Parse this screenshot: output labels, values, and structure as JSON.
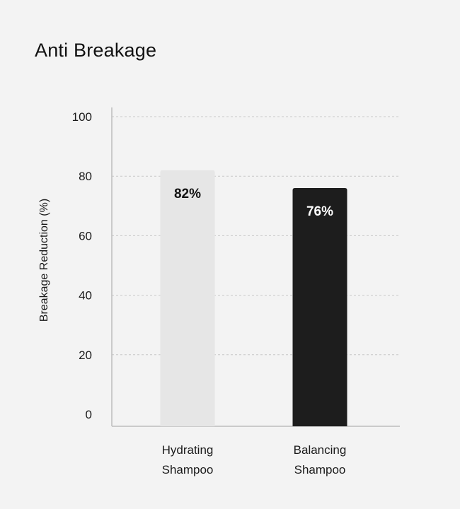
{
  "chart_data": {
    "type": "bar",
    "title": "Anti Breakage",
    "ylabel": "Breakage Reduction (%)",
    "xlabel": "",
    "ylim": [
      0,
      100
    ],
    "yticks": [
      0,
      20,
      40,
      60,
      80,
      100
    ],
    "grid": true,
    "categories": [
      [
        "Hydrating",
        "Shampoo"
      ],
      [
        "Balancing",
        "Shampoo"
      ]
    ],
    "values": [
      82,
      76
    ],
    "data_labels": [
      "82%",
      "76%"
    ],
    "bar_colors": [
      "#e6e6e6",
      "#1d1d1d"
    ],
    "label_colors": [
      "#111111",
      "#ffffff"
    ]
  },
  "colors": {
    "background": "#f3f3f3",
    "grid": "#c8c8c8",
    "axis": "#bdbdbd"
  }
}
